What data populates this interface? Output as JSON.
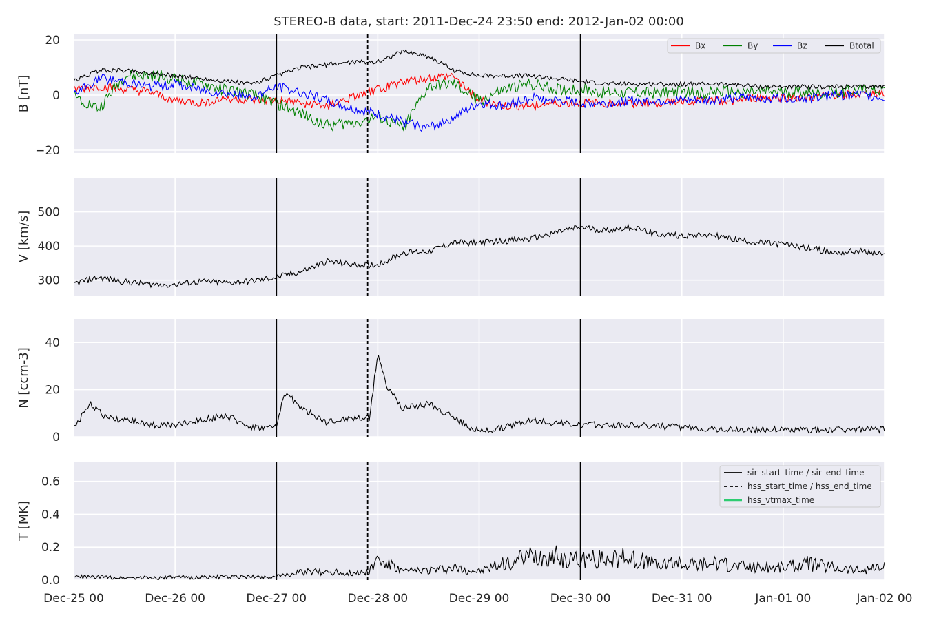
{
  "chart_data": {
    "title": "STEREO-B data, start: 2011-Dec-24 23:50  end: 2012-Jan-02 00:00",
    "type": "line",
    "x_range_days": [
      0,
      8
    ],
    "x_ticks": [
      "Dec-25 00",
      "Dec-26 00",
      "Dec-27 00",
      "Dec-28 00",
      "Dec-29 00",
      "Dec-30 00",
      "Dec-31 00",
      "Jan-01 00",
      "Jan-02 00"
    ],
    "event_lines": {
      "sir_start_time": "Dec-27 00",
      "hss_start_time": "Dec-27 22",
      "sir_end_time": "Dec-30 00"
    },
    "panels": [
      {
        "ylabel": "B [nT]",
        "ylim": [
          -21,
          22
        ],
        "yticks": [
          -20,
          0,
          20
        ],
        "ytick_labels": [
          "−20",
          "0",
          "20"
        ],
        "legend": {
          "position": "top-right",
          "entries": [
            "Bx",
            "By",
            "Bz",
            "Btotal"
          ]
        },
        "series": [
          {
            "name": "Bx",
            "color": "#ff0000",
            "x": [
              0,
              0.25,
              0.5,
              0.75,
              1.0,
              1.25,
              1.5,
              1.75,
              2.0,
              2.25,
              2.5,
              2.75,
              3.0,
              3.25,
              3.5,
              3.75,
              4.0,
              4.25,
              4.5,
              4.75,
              5.0,
              5.25,
              5.5,
              5.75,
              6.0,
              6.25,
              6.5,
              6.75,
              7.0,
              7.25,
              7.5,
              7.75,
              8.0
            ],
            "y": [
              2,
              3,
              2,
              1,
              -2,
              -3,
              -1,
              -2,
              -2,
              -3,
              -4,
              -1,
              2,
              5,
              6,
              7,
              -2,
              -4,
              -4,
              -3,
              -3,
              -3,
              -3,
              -3,
              -2,
              -2,
              -2,
              -1,
              -1,
              -1,
              0,
              0,
              1
            ]
          },
          {
            "name": "By",
            "color": "#008000",
            "x": [
              0,
              0.25,
              0.5,
              0.75,
              1.0,
              1.25,
              1.5,
              1.75,
              2.0,
              2.25,
              2.5,
              2.75,
              3.0,
              3.25,
              3.5,
              3.75,
              4.0,
              4.25,
              4.5,
              4.75,
              5.0,
              5.25,
              5.5,
              5.75,
              6.0,
              6.25,
              6.5,
              6.75,
              7.0,
              7.25,
              7.5,
              7.75,
              8.0
            ],
            "y": [
              0,
              -5,
              7,
              7,
              6,
              4,
              2,
              0,
              -3,
              -7,
              -11,
              -10,
              -8,
              -12,
              3,
              4,
              -2,
              2,
              4,
              2,
              2,
              1,
              1,
              1,
              1,
              1,
              1,
              1,
              1,
              1,
              1,
              2,
              2
            ]
          },
          {
            "name": "Bz",
            "color": "#0000ff",
            "x": [
              0,
              0.25,
              0.5,
              0.75,
              1.0,
              1.25,
              1.5,
              1.75,
              2.0,
              2.25,
              2.5,
              2.75,
              3.0,
              3.25,
              3.5,
              3.75,
              4.0,
              4.25,
              4.5,
              4.75,
              5.0,
              5.25,
              5.5,
              5.75,
              6.0,
              6.25,
              6.5,
              6.75,
              7.0,
              7.25,
              7.5,
              7.75,
              8.0
            ],
            "y": [
              0,
              6,
              5,
              3,
              4,
              2,
              1,
              -1,
              3,
              1,
              -2,
              -5,
              -7,
              -10,
              -12,
              -8,
              -3,
              -4,
              -1,
              -2,
              -3,
              -3,
              -2,
              -2,
              -2,
              -2,
              -1,
              -1,
              -1,
              -1,
              0,
              0,
              -1
            ]
          },
          {
            "name": "Btotal",
            "color": "#000000",
            "x": [
              0,
              0.25,
              0.5,
              0.75,
              1.0,
              1.25,
              1.5,
              1.75,
              2.0,
              2.25,
              2.5,
              2.75,
              3.0,
              3.25,
              3.5,
              3.75,
              4.0,
              4.25,
              4.5,
              4.75,
              5.0,
              5.25,
              5.5,
              5.75,
              6.0,
              6.25,
              6.5,
              6.75,
              7.0,
              7.25,
              7.5,
              7.75,
              8.0
            ],
            "y": [
              5,
              9,
              9,
              8,
              7,
              6,
              5,
              4,
              7,
              10,
              11,
              12,
              12,
              16,
              14,
              9,
              7,
              7,
              7,
              6,
              5,
              4,
              4,
              4,
              4,
              4,
              4,
              3,
              3,
              3,
              3,
              3,
              3
            ]
          }
        ]
      },
      {
        "ylabel": "V [km/s]",
        "ylim": [
          255,
          600
        ],
        "yticks": [
          300,
          400,
          500
        ],
        "ytick_labels": [
          "300",
          "400",
          "500"
        ],
        "series": [
          {
            "name": "",
            "color": "#000000",
            "x": [
              0,
              0.25,
              0.5,
              0.75,
              1.0,
              1.25,
              1.5,
              1.75,
              2.0,
              2.25,
              2.5,
              2.75,
              3.0,
              3.25,
              3.5,
              3.75,
              4.0,
              4.25,
              4.5,
              4.75,
              5.0,
              5.25,
              5.5,
              5.75,
              6.0,
              6.25,
              6.5,
              6.75,
              7.0,
              7.25,
              7.5,
              7.75,
              8.0
            ],
            "y": [
              290,
              308,
              295,
              288,
              288,
              296,
              292,
              297,
              308,
              325,
              355,
              345,
              345,
              380,
              385,
              410,
              410,
              415,
              420,
              440,
              455,
              445,
              455,
              435,
              430,
              435,
              420,
              410,
              405,
              395,
              380,
              385,
              375
            ]
          }
        ]
      },
      {
        "ylabel": "N [ccm-3]",
        "ylim": [
          0,
          50
        ],
        "yticks": [
          0,
          20,
          40
        ],
        "ytick_labels": [
          "0",
          "20",
          "40"
        ],
        "series": [
          {
            "name": "",
            "color": "#000000",
            "x": [
              0,
              0.17,
              0.33,
              0.5,
              0.75,
              1.0,
              1.25,
              1.5,
              1.75,
              2.0,
              2.08,
              2.25,
              2.5,
              2.75,
              2.92,
              3.0,
              3.08,
              3.25,
              3.5,
              3.75,
              4.0,
              4.25,
              4.5,
              4.75,
              5.0,
              5.5,
              6.0,
              6.5,
              7.0,
              7.5,
              8.0
            ],
            "y": [
              4,
              14,
              8,
              7,
              5,
              5,
              7,
              9,
              4,
              4,
              19,
              12,
              6,
              8,
              8,
              36,
              22,
              12,
              14,
              8,
              2,
              4,
              7,
              6,
              5,
              5,
              4,
              3,
              3,
              3,
              3
            ]
          }
        ]
      },
      {
        "ylabel": "T [MK]",
        "ylim": [
          0,
          0.72
        ],
        "yticks": [
          0.0,
          0.2,
          0.4,
          0.6
        ],
        "ytick_labels": [
          "0.0",
          "0.2",
          "0.4",
          "0.6"
        ],
        "legend": {
          "position": "top-right",
          "entries": [
            "sir_start_time / sir_end_time",
            "hss_start_time / hss_end_time",
            "hss_vtmax_time"
          ]
        },
        "legend_colors": [
          "#000000",
          "#000000",
          "#2ecc71"
        ],
        "series": [
          {
            "name": "",
            "color": "#000000",
            "x": [
              0,
              0.5,
              1.0,
              1.5,
              2.0,
              2.25,
              2.5,
              2.75,
              2.9,
              3.0,
              3.25,
              3.5,
              3.75,
              4.0,
              4.25,
              4.5,
              4.75,
              5.0,
              5.25,
              5.5,
              5.75,
              6.0,
              6.25,
              6.5,
              6.75,
              7.0,
              7.25,
              7.5,
              7.75,
              8.0
            ],
            "y": [
              0.02,
              0.015,
              0.015,
              0.02,
              0.02,
              0.05,
              0.05,
              0.04,
              0.05,
              0.12,
              0.05,
              0.06,
              0.07,
              0.05,
              0.1,
              0.14,
              0.15,
              0.12,
              0.13,
              0.14,
              0.09,
              0.1,
              0.1,
              0.09,
              0.08,
              0.08,
              0.1,
              0.08,
              0.06,
              0.08
            ]
          }
        ]
      }
    ]
  }
}
